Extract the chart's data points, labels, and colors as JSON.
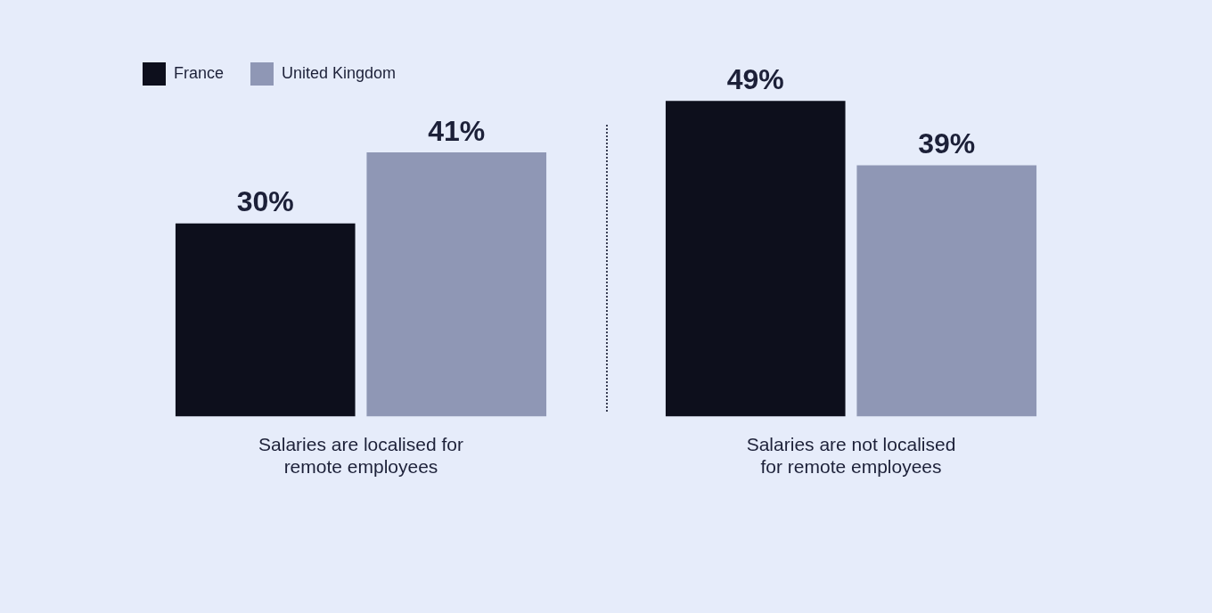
{
  "chart_data": {
    "type": "bar",
    "categories": [
      "Salaries are localised for remote employees",
      "Salaries are not localised for remote employees"
    ],
    "series": [
      {
        "name": "France",
        "color": "#0d0f1c",
        "values": [
          30,
          49
        ],
        "value_labels": [
          "30%",
          "49%"
        ]
      },
      {
        "name": "United Kingdom",
        "color": "#8f97b5",
        "values": [
          41,
          39
        ],
        "value_labels": [
          "41%",
          "39%"
        ]
      }
    ],
    "legend": "top left",
    "grid": false
  }
}
